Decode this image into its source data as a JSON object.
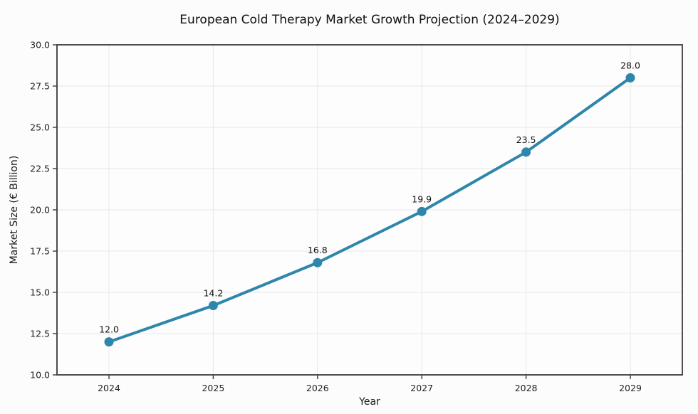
{
  "chart_data": {
    "type": "line",
    "title": "European Cold Therapy Market Growth Projection (2024–2029)",
    "xlabel": "Year",
    "ylabel": "Market Size (€ Billion)",
    "categories": [
      "2024",
      "2025",
      "2026",
      "2027",
      "2028",
      "2029"
    ],
    "values": [
      12.0,
      14.2,
      16.8,
      19.9,
      23.5,
      28.0
    ],
    "point_labels": [
      "12.0",
      "14.2",
      "16.8",
      "19.9",
      "23.5",
      "28.0"
    ],
    "ylim": [
      10.0,
      30.0
    ],
    "yticks": [
      "10.0",
      "12.5",
      "15.0",
      "17.5",
      "20.0",
      "22.5",
      "25.0",
      "27.5",
      "30.0"
    ],
    "grid": true,
    "legend_position": "none",
    "colors": {
      "line": "#2E86AB",
      "marker": "#2E86AB",
      "grid": "#e7e7e7",
      "spine": "#3a3a3a",
      "plot_background": "#fdfdfd",
      "figure_background": "#fcfcfc",
      "text": "#1a1a1a"
    }
  }
}
